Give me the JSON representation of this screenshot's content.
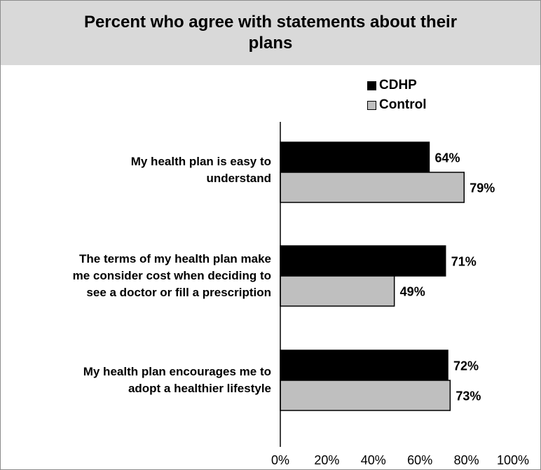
{
  "chart_data": {
    "type": "bar",
    "orientation": "horizontal",
    "title": "Percent who agree with statements about their plans",
    "categories": [
      [
        "My health plan is easy to",
        "understand"
      ],
      [
        "The terms of my health plan make",
        "me consider cost when deciding to",
        "see a doctor or fill a prescription"
      ],
      [
        "My health plan encourages me to",
        "adopt a healthier lifestyle"
      ]
    ],
    "series": [
      {
        "name": "CDHP",
        "values": [
          64,
          71,
          72
        ],
        "labels": [
          "64%",
          "71%",
          "72%"
        ],
        "color": "#000000"
      },
      {
        "name": "Control",
        "values": [
          79,
          49,
          73
        ],
        "labels": [
          "79%",
          "49%",
          "73%"
        ],
        "color": "#bfbfbf"
      }
    ],
    "xlim": [
      0,
      100
    ],
    "xticks": [
      "0%",
      "20%",
      "40%",
      "60%",
      "80%",
      "100%"
    ],
    "grid": false,
    "legend": "top-right",
    "colors": {
      "title_band": "#d9d9d9",
      "frame": "#8c8c8c"
    }
  }
}
